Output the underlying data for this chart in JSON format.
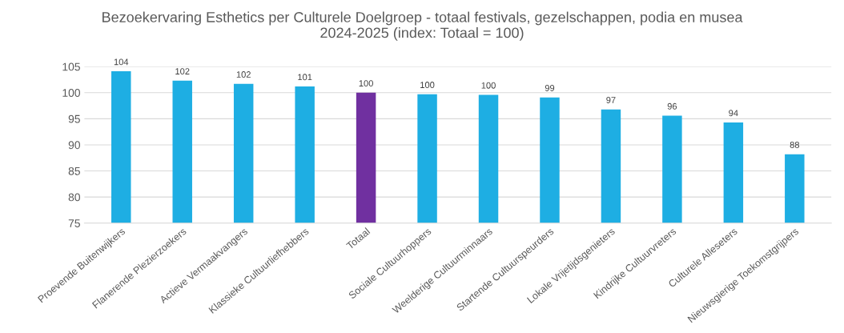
{
  "chart_data": {
    "type": "bar",
    "title": "Bezoekervaring Esthetics per Culturele Doelgroep - totaal festivals, gezelschappen, podia en musea\n2024-2025 (index: Totaal = 100)",
    "categories": [
      "Proevende Buitenwijkers",
      "Flanerende Plezierzoekers",
      "Actieve Vermaakvangers",
      "Klassieke Cultuurliefhebbers",
      "Totaal",
      "Sociale Cultuurhoppers",
      "Weelderige Cultuurminnaars",
      "Startende Cultuurspeurders",
      "Lokale Vrijetijdsgenieters",
      "Kindrijke Cultuurvreters",
      "Culturele Alleseters",
      "Nieuwsgierige Toekomstgrijpers"
    ],
    "values": [
      104.1,
      102.3,
      101.7,
      101.2,
      100.0,
      99.7,
      99.6,
      99.1,
      96.8,
      95.6,
      94.3,
      88.2
    ],
    "value_labels": [
      "104",
      "102",
      "102",
      "101",
      "100",
      "100",
      "100",
      "99",
      "97",
      "96",
      "94",
      "88"
    ],
    "colors": [
      "#1eaee3",
      "#1eaee3",
      "#1eaee3",
      "#1eaee3",
      "#7030a0",
      "#1eaee3",
      "#1eaee3",
      "#1eaee3",
      "#1eaee3",
      "#1eaee3",
      "#1eaee3",
      "#1eaee3"
    ],
    "ylim": [
      75,
      105
    ],
    "yticks": [
      75,
      80,
      85,
      90,
      95,
      100,
      105
    ],
    "grid": "y",
    "legend": false
  }
}
